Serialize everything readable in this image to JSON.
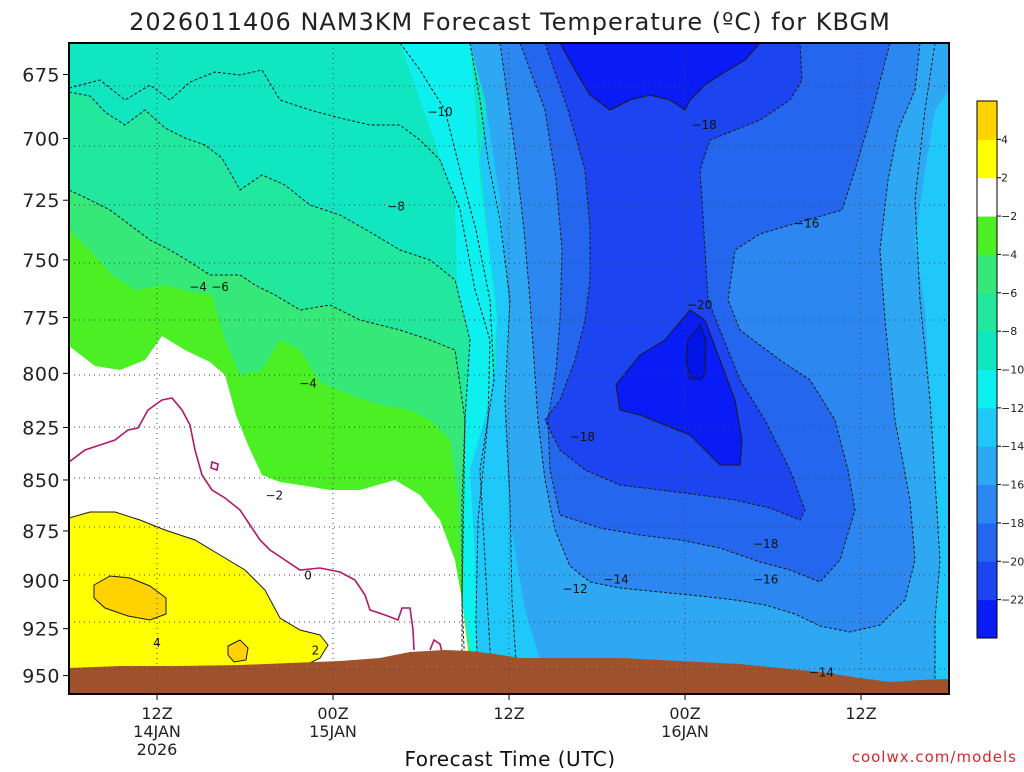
{
  "title": "2026011406 NAM3KM Forecast Temperature (ºC) for KBGM",
  "xlabel": "Forecast Time (UTC)",
  "credit": "coolwx.com/models",
  "chart_data": {
    "type": "heatmap",
    "title": "2026011406 NAM3KM Forecast Temperature (ºC) for KBGM",
    "xlabel": "Forecast Time (UTC)",
    "ylabel": "",
    "x_range_hours_from_init": [
      0,
      60
    ],
    "x_ticks": [
      {
        "hour": 6,
        "lines": [
          "12Z",
          "14JAN",
          "2026"
        ]
      },
      {
        "hour": 18,
        "lines": [
          "00Z",
          "15JAN"
        ]
      },
      {
        "hour": 30,
        "lines": [
          "12Z"
        ]
      },
      {
        "hour": 42,
        "lines": [
          "00Z",
          "16JAN"
        ]
      },
      {
        "hour": 54,
        "lines": [
          "12Z"
        ]
      }
    ],
    "y_axis": "pressure_hPa",
    "y_inverted": true,
    "ylim": [
      663,
      960
    ],
    "y_ticks": [
      675,
      700,
      725,
      750,
      775,
      800,
      825,
      850,
      875,
      900,
      925,
      950
    ],
    "grid": true,
    "colorbar": {
      "position": "right",
      "boundaries": [
        -24,
        -22,
        -20,
        -18,
        -16,
        -14,
        -12,
        -10,
        -8,
        -6,
        -4,
        -2,
        2,
        4,
        6
      ],
      "labels": [
        "-22",
        "-20",
        "-18",
        "-16",
        "-14",
        "-12",
        "-10",
        "-8",
        "-6",
        "-4",
        "-2",
        "2",
        "4"
      ],
      "colors": [
        "#0a1cf5",
        "#1c44f0",
        "#2466ee",
        "#2c88f0",
        "#2fa8f4",
        "#1fc8f8",
        "#0ef0f0",
        "#10e6c0",
        "#22e89e",
        "#36e878",
        "#4cee24",
        "#ffffff",
        "#ffff00",
        "#ffd200"
      ]
    },
    "contour_labels": [
      {
        "value": -10,
        "hour": 25.3,
        "p": 690
      },
      {
        "value": -8,
        "hour": 22.3,
        "p": 728
      },
      {
        "value": -18,
        "hour": 43.3,
        "p": 695
      },
      {
        "value": -16,
        "hour": 50.3,
        "p": 735
      },
      {
        "value": -20,
        "hour": 43.0,
        "p": 770
      },
      {
        "value": -4,
        "hour": 8.8,
        "p": 762
      },
      {
        "value": -6,
        "hour": 10.3,
        "p": 762
      },
      {
        "value": -4,
        "hour": 16.3,
        "p": 805
      },
      {
        "value": -18,
        "hour": 35.0,
        "p": 830
      },
      {
        "value": -2,
        "hour": 14.0,
        "p": 858
      },
      {
        "value": -18,
        "hour": 47.5,
        "p": 882
      },
      {
        "value": -12,
        "hour": 34.5,
        "p": 905
      },
      {
        "value": -14,
        "hour": 37.3,
        "p": 900
      },
      {
        "value": -16,
        "hour": 47.5,
        "p": 900
      },
      {
        "value": 0,
        "hour": 16.3,
        "p": 898
      },
      {
        "value": 4,
        "hour": 6.0,
        "p": 933
      },
      {
        "value": 2,
        "hour": 16.8,
        "p": 937
      },
      {
        "value": -14,
        "hour": 51.3,
        "p": 949
      }
    ]
  }
}
